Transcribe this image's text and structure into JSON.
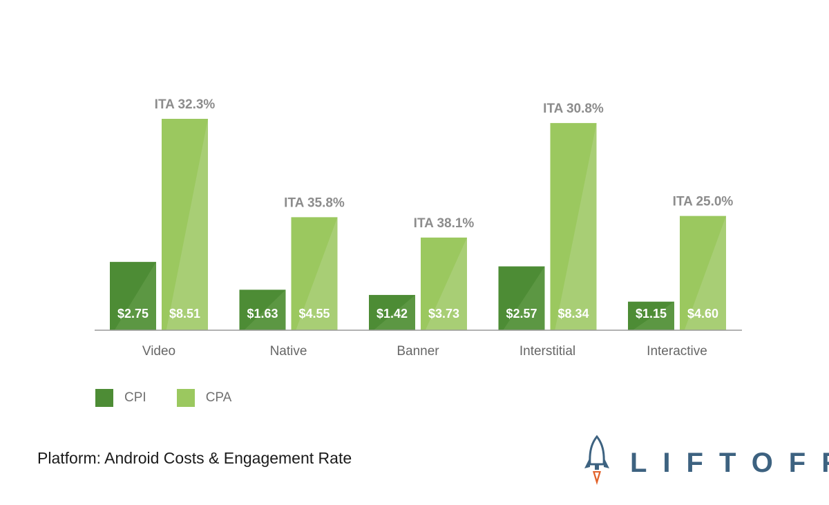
{
  "colors": {
    "cpi": "#4d8c35",
    "cpi_hi": "#6aa04f",
    "cpa": "#9bc85f",
    "cpa_hi": "#b3d486",
    "axis": "#999999",
    "ita_text": "#8c8c8c",
    "brand": "#3d6280",
    "rocket_flame": "#e2622a"
  },
  "chart_data": {
    "type": "bar",
    "categories": [
      "Video",
      "Native",
      "Banner",
      "Interstitial",
      "Interactive"
    ],
    "series": [
      {
        "name": "CPI",
        "values": [
          2.75,
          1.63,
          1.42,
          2.57,
          1.15
        ],
        "labels": [
          "$2.75",
          "$1.63",
          "$1.42",
          "$2.57",
          "$1.15"
        ]
      },
      {
        "name": "CPA",
        "values": [
          8.51,
          4.55,
          3.73,
          8.34,
          4.6
        ],
        "labels": [
          "$8.51",
          "$4.55",
          "$3.73",
          "$8.34",
          "$4.60"
        ]
      }
    ],
    "annotations": [
      "ITA 32.3%",
      "ITA 35.8%",
      "ITA 38.1%",
      "ITA 30.8%",
      "ITA 25.0%"
    ],
    "ylim": [
      0,
      8.51
    ],
    "title": "",
    "xlabel": "",
    "ylabel": "",
    "grid": false
  },
  "legend": {
    "items": [
      {
        "label": "CPI"
      },
      {
        "label": "CPA"
      }
    ]
  },
  "footer": {
    "title": "Platform: Android Costs & Engagement Rate"
  },
  "brand": {
    "name": "LIFTOFF",
    "icon": "rocket-icon"
  }
}
